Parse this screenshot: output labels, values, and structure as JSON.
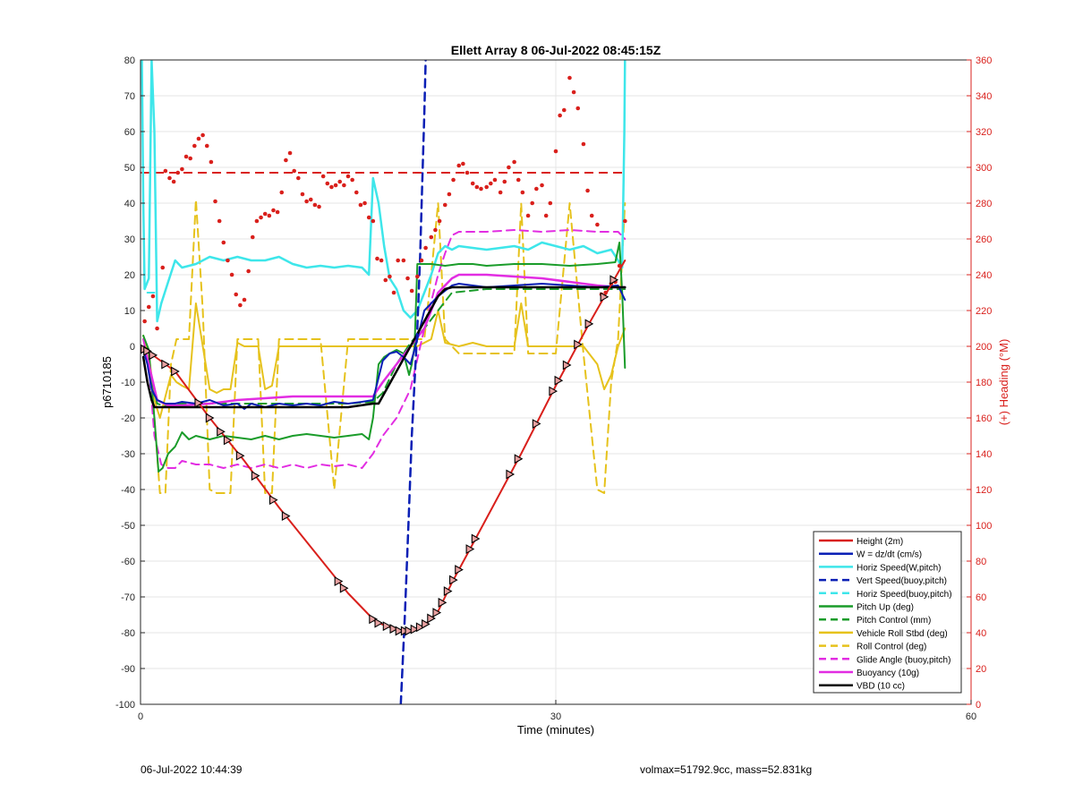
{
  "chart_data": {
    "type": "line",
    "title": "Ellett Array 8 06-Jul-2022 08:45:15Z",
    "xlabel": "Time (minutes)",
    "ylabel": "p6710185",
    "y2label": "(+) Heading (°M)",
    "xlim": [
      0,
      60
    ],
    "ylim": [
      -100,
      80
    ],
    "y2lim": [
      0,
      360
    ],
    "xticks": [
      0,
      30,
      60
    ],
    "yticks": [
      -100,
      -90,
      -80,
      -70,
      -60,
      -50,
      -40,
      -30,
      -20,
      -10,
      0,
      10,
      20,
      30,
      40,
      50,
      60,
      70,
      80
    ],
    "y2ticks": [
      0,
      20,
      40,
      60,
      80,
      100,
      120,
      140,
      160,
      180,
      200,
      220,
      240,
      260,
      280,
      300,
      320,
      340,
      360
    ],
    "grid": true,
    "legend_position": "bottom-right",
    "colors": {
      "red": "#d9201c",
      "blue": "#0a1fb5",
      "cyan": "#3ee6ea",
      "green": "#1a9c2a",
      "gold": "#e6c21c",
      "magenta": "#e22de2",
      "black": "#000000",
      "heading_axis": "#d9201c"
    },
    "legend": [
      {
        "label": "Height (2m)",
        "color": "#d9201c",
        "dash": false
      },
      {
        "label": "W = dz/dt (cm/s)",
        "color": "#0a1fb5",
        "dash": false
      },
      {
        "label": "Horiz Speed(W,pitch)",
        "color": "#3ee6ea",
        "dash": false
      },
      {
        "label": "Vert Speed(buoy,pitch)",
        "color": "#0a1fb5",
        "dash": true
      },
      {
        "label": "Horiz Speed(buoy,pitch)",
        "color": "#3ee6ea",
        "dash": true
      },
      {
        "label": "Pitch Up (deg)",
        "color": "#1a9c2a",
        "dash": false
      },
      {
        "label": "Pitch Control (mm)",
        "color": "#1a9c2a",
        "dash": true
      },
      {
        "label": "Vehicle Roll Stbd (deg)",
        "color": "#e6c21c",
        "dash": false
      },
      {
        "label": "Roll Control (deg)",
        "color": "#e6c21c",
        "dash": true
      },
      {
        "label": "Glide Angle (buoy,pitch)",
        "color": "#e22de2",
        "dash": true
      },
      {
        "label": "Buoyancy (10g)",
        "color": "#e22de2",
        "dash": false
      },
      {
        "label": "VBD (10 cc)",
        "color": "#000000",
        "dash": false
      }
    ],
    "series": [
      {
        "name": "Height (2m)",
        "color": "#d9201c",
        "dash": false,
        "width": 2,
        "x": [
          0.2,
          2.5,
          5,
          7.5,
          10,
          12.5,
          15,
          17,
          18.7,
          19.5,
          20.5,
          21.5,
          22.5,
          25,
          27.5,
          30,
          32.5,
          35
        ],
        "y": [
          -0.5,
          -7,
          -20,
          -32,
          -45,
          -57,
          -69,
          -77,
          -79.5,
          -79.5,
          -78,
          -74,
          -66,
          -48,
          -30,
          -11,
          7,
          24
        ]
      },
      {
        "name": "W = dz/dt (cm/s)",
        "color": "#0a1fb5",
        "dash": false,
        "width": 2,
        "x": [
          0.2,
          0.5,
          0.8,
          1.2,
          1.8,
          2.5,
          3,
          4,
          5,
          6,
          7,
          7.5,
          8,
          9,
          10,
          11,
          12,
          13,
          14,
          15,
          16,
          16.8,
          17.5,
          18,
          18.5,
          19,
          19.5,
          20,
          20.5,
          21.5,
          22.5,
          23,
          25,
          27,
          29,
          31,
          33,
          34.5,
          35
        ],
        "y": [
          -1,
          -5,
          -12,
          -15,
          -16,
          -16,
          -15.5,
          -16,
          -15,
          -16.5,
          -16,
          -17.5,
          -16,
          -17,
          -16,
          -16.5,
          -16,
          -16.5,
          -15.5,
          -16,
          -15.5,
          -15,
          -4,
          -2,
          -1.5,
          -3,
          -5,
          2,
          10,
          14,
          17,
          17.5,
          16.5,
          17,
          17.5,
          17,
          16.5,
          17,
          13
        ]
      },
      {
        "name": "Horiz Speed(W,pitch)",
        "color": "#3ee6ea",
        "dash": false,
        "width": 2.5,
        "x": [
          0.1,
          0.2,
          0.3,
          0.6,
          0.8,
          1.0,
          1.2,
          1.5,
          2,
          2.5,
          3,
          4,
          5,
          6,
          7,
          8,
          9,
          10,
          11,
          12,
          13,
          14,
          15,
          16,
          16.5,
          16.8,
          17.2,
          17.6,
          18,
          18.5,
          19,
          19.5,
          20,
          20.5,
          21,
          21.5,
          22,
          22.5,
          23,
          25,
          27,
          28,
          29,
          30,
          31,
          32,
          33,
          34,
          34.5,
          34.8,
          34.95,
          35
        ],
        "y": [
          80,
          40,
          16,
          19,
          80,
          60,
          7,
          12,
          18,
          24,
          22,
          23,
          25,
          24,
          25,
          24,
          24,
          25,
          23,
          22,
          22.5,
          22,
          22.5,
          22,
          20,
          47,
          40,
          28,
          19,
          16,
          10,
          8,
          10,
          15,
          20,
          26,
          28,
          27,
          28,
          27,
          28,
          27,
          29,
          28,
          27,
          28,
          26,
          27,
          24,
          22,
          60,
          80
        ]
      },
      {
        "name": "Vert Speed(buoy,pitch)",
        "color": "#0a1fb5",
        "dash": true,
        "width": 2.5,
        "x": [
          18.8,
          19.1,
          19.4,
          19.6,
          19.8,
          20.0,
          20.2,
          20.35,
          20.5,
          20.6
        ],
        "y": [
          -100,
          -75,
          -45,
          -25,
          -10,
          5,
          25,
          45,
          65,
          80
        ]
      },
      {
        "name": "Horiz Speed(buoy,pitch)",
        "color": "#3ee6ea",
        "dash": true,
        "width": 2,
        "x": [
          0.5,
          1
        ],
        "y": [
          15,
          15
        ]
      },
      {
        "name": "Pitch Up (deg)",
        "color": "#1a9c2a",
        "dash": false,
        "width": 2,
        "x": [
          0.2,
          0.6,
          1.0,
          1.3,
          1.6,
          2,
          2.5,
          3,
          3.5,
          4,
          5,
          6,
          7,
          8,
          9,
          10,
          11,
          12,
          13,
          14,
          15,
          16,
          16.5,
          16.8,
          17.2,
          17.6,
          18,
          18.5,
          19,
          19.4,
          19.6,
          19.8,
          20.0,
          20.3,
          21,
          22,
          23,
          24,
          25,
          27,
          29,
          31,
          33,
          34.3,
          34.6,
          34.8,
          35
        ],
        "y": [
          3,
          -1,
          -20,
          -35,
          -34,
          -30,
          -28,
          -24,
          -26,
          -25,
          -26,
          -25,
          -25.5,
          -26,
          -25,
          -26,
          -25,
          -24.5,
          -25,
          -25.5,
          -25,
          -24.5,
          -26,
          -20,
          -5,
          -3,
          -2,
          -1,
          -2,
          -8,
          -5,
          0,
          23,
          23,
          23,
          22.5,
          23,
          23,
          22.5,
          23,
          23,
          22.5,
          23,
          23.5,
          29,
          15,
          -6
        ]
      },
      {
        "name": "Pitch Control (mm)",
        "color": "#1a9c2a",
        "dash": true,
        "width": 2,
        "x": [
          0.2,
          0.6,
          1.2,
          2,
          3,
          5,
          7,
          9,
          11,
          13,
          15,
          16.8,
          17.5,
          18.5,
          19.5,
          20.5,
          21.5,
          22.5,
          25,
          28,
          31,
          34,
          35
        ],
        "y": [
          0,
          -5,
          -16,
          -17,
          -16,
          -16,
          -16,
          -16,
          -16,
          -16,
          -16,
          -15.5,
          -13,
          -5,
          1,
          5,
          10,
          15,
          16,
          16,
          16,
          16,
          16
        ]
      },
      {
        "name": "Vehicle Roll Stbd (deg)",
        "color": "#e6c21c",
        "dash": false,
        "width": 2,
        "x": [
          0.2,
          0.6,
          1.0,
          1.4,
          1.8,
          2.2,
          2.6,
          3,
          3.5,
          4,
          4.5,
          5,
          5.5,
          6,
          6.5,
          7,
          7.5,
          8,
          8.5,
          9,
          9.5,
          10,
          10.5,
          11,
          12,
          13,
          14,
          15,
          16,
          17,
          18,
          19,
          20,
          20.5,
          21,
          21.5,
          22,
          23,
          24,
          25,
          26,
          27,
          27.5,
          28,
          28.5,
          29,
          29.5,
          30,
          31,
          32,
          33,
          33.5,
          34,
          34.5,
          35
        ],
        "y": [
          3,
          -2,
          -15,
          -20,
          -14,
          -8,
          -10,
          -11,
          -12,
          12,
          0,
          -12,
          -13,
          -12,
          -12,
          1,
          0,
          0,
          0,
          -12,
          -11,
          0,
          0,
          0,
          0,
          0,
          0,
          0,
          0,
          0,
          0,
          0,
          0,
          1,
          2,
          10,
          1,
          0,
          1,
          0,
          0,
          0,
          12,
          0,
          0,
          0,
          0,
          0,
          0,
          0,
          -5,
          -12,
          -8,
          0,
          5
        ]
      },
      {
        "name": "Roll Control (deg)",
        "color": "#e6c21c",
        "dash": true,
        "width": 2,
        "x": [
          0.2,
          0.6,
          1.0,
          1.4,
          1.8,
          2.2,
          2.6,
          3,
          3.5,
          4,
          4.5,
          5,
          5.5,
          6,
          6.5,
          7,
          7.5,
          8,
          8.5,
          9,
          9.5,
          10,
          10.5,
          11,
          12,
          13,
          14,
          15,
          16,
          17,
          18,
          19,
          20,
          20.5,
          21,
          21.5,
          22,
          23,
          24,
          25,
          26,
          27,
          27.5,
          28,
          28.5,
          29,
          29.5,
          30,
          31,
          32,
          33,
          33.5,
          34,
          34.5,
          35
        ],
        "y": [
          2,
          -5,
          -20,
          -41,
          -41,
          -5,
          2,
          2,
          2,
          41,
          10,
          -40,
          -41,
          -41,
          -41,
          2,
          2,
          2,
          2,
          -41,
          -41,
          2,
          2,
          2,
          2,
          2,
          -40,
          2,
          2,
          2,
          2,
          2,
          2,
          2,
          20,
          40,
          2,
          -2,
          -2,
          -2,
          -2,
          -2,
          40,
          -2,
          -2,
          -2,
          -2,
          -2,
          40,
          -2,
          -40,
          -41,
          -10,
          2,
          40
        ]
      },
      {
        "name": "Glide Angle (buoy,pitch)",
        "color": "#e22de2",
        "dash": true,
        "width": 2,
        "x": [
          0.2,
          0.6,
          1.0,
          1.5,
          2,
          2.5,
          3,
          4,
          5,
          6,
          7,
          8,
          9,
          10,
          11,
          12,
          13,
          14,
          15,
          16,
          16.8,
          17.5,
          18.5,
          19.5,
          20.5,
          21.5,
          22,
          22.5,
          23,
          25,
          27,
          29,
          31,
          33,
          34.5,
          35
        ],
        "y": [
          2,
          -5,
          -25,
          -33,
          -34,
          -34,
          -32,
          -33,
          -33,
          -34,
          -33,
          -34,
          -33,
          -34,
          -33,
          -34,
          -33,
          -33.5,
          -33,
          -34,
          -30,
          -25,
          -20,
          -12,
          5,
          20,
          26,
          31,
          32,
          32,
          32.5,
          32,
          32.5,
          32,
          32,
          30
        ]
      },
      {
        "name": "Buoyancy (10g)",
        "color": "#e22de2",
        "dash": false,
        "width": 2.5,
        "x": [
          0.2,
          0.6,
          1.2,
          2,
          3,
          5,
          7,
          9,
          11,
          13,
          15,
          16.8,
          17.5,
          18.5,
          19.5,
          20.5,
          21.5,
          22.5,
          23,
          25,
          27,
          29,
          31,
          33,
          34.5,
          35
        ],
        "y": [
          0,
          -5,
          -15,
          -16.5,
          -16.5,
          -16,
          -15,
          -14.5,
          -14,
          -14,
          -14,
          -14,
          -10,
          -5,
          0,
          5,
          15,
          19,
          20,
          20,
          19.5,
          19,
          18,
          17,
          16.5,
          16.5
        ]
      },
      {
        "name": "VBD (10 cc)",
        "color": "#000000",
        "dash": false,
        "width": 2.5,
        "x": [
          0.2,
          0.5,
          0.8,
          1.0,
          1.2,
          2,
          5,
          10,
          15,
          16.8,
          17.2,
          19.5,
          20.5,
          21.5,
          22,
          22.5,
          23,
          25,
          30,
          35
        ],
        "y": [
          -3,
          -10,
          -15,
          -17,
          -17,
          -17,
          -17,
          -17,
          -17,
          -16,
          -16,
          0,
          7,
          14,
          16,
          16.5,
          16.5,
          16.5,
          16.5,
          16.5
        ]
      }
    ],
    "heading_reference": {
      "name": "heading reference",
      "color": "#d9201c",
      "dash": true,
      "x": [
        0,
        35
      ],
      "y2": [
        297,
        297
      ]
    },
    "heading_points": {
      "color": "#d9201c",
      "x": [
        0.3,
        0.6,
        0.9,
        1.2,
        1.6,
        1.8,
        2.1,
        2.4,
        2.7,
        3.0,
        3.3,
        3.6,
        3.9,
        4.2,
        4.5,
        4.8,
        5.1,
        5.4,
        5.7,
        6.0,
        6.3,
        6.6,
        6.9,
        7.2,
        7.5,
        7.8,
        8.1,
        8.4,
        8.7,
        9.0,
        9.3,
        9.6,
        9.9,
        10.2,
        10.5,
        10.8,
        11.1,
        11.4,
        11.7,
        12.0,
        12.3,
        12.6,
        12.9,
        13.2,
        13.5,
        13.8,
        14.1,
        14.4,
        14.7,
        15.0,
        15.3,
        15.6,
        15.9,
        16.2,
        16.5,
        16.8,
        17.1,
        17.4,
        17.7,
        18.0,
        18.3,
        18.6,
        19.0,
        19.3,
        19.6,
        20.0,
        20.3,
        20.6,
        21.0,
        21.3,
        21.6,
        22.0,
        22.3,
        22.6,
        23.0,
        23.3,
        23.6,
        24.0,
        24.3,
        24.6,
        25.0,
        25.3,
        25.6,
        26.0,
        26.3,
        26.6,
        27.0,
        27.3,
        27.6,
        28.0,
        28.3,
        28.6,
        29.0,
        29.3,
        29.6,
        30.0,
        30.3,
        30.6,
        31.0,
        31.3,
        31.6,
        32.0,
        32.3,
        32.6,
        33.0,
        33.3,
        33.6,
        34.0,
        34.3,
        34.6,
        35.0
      ],
      "y2": [
        214,
        222,
        228,
        210,
        244,
        298,
        294,
        292,
        297,
        299,
        306,
        305,
        312,
        316,
        318,
        312,
        303,
        281,
        270,
        258,
        248,
        240,
        229,
        223,
        226,
        242,
        261,
        270,
        272,
        274,
        273,
        276,
        275,
        286,
        304,
        308,
        298,
        294,
        285,
        281,
        282,
        279,
        278,
        295,
        291,
        289,
        290,
        292,
        290,
        295,
        293,
        286,
        279,
        280,
        272,
        270,
        249,
        248,
        237,
        239,
        230,
        248,
        248,
        238,
        231,
        239,
        248,
        255,
        261,
        265,
        270,
        279,
        285,
        293,
        301,
        302,
        297,
        291,
        289,
        288,
        289,
        291,
        293,
        286,
        292,
        300,
        303,
        293,
        286,
        273,
        280,
        288,
        290,
        273,
        280,
        309,
        329,
        332,
        350,
        342,
        333,
        313,
        287,
        273,
        268,
        229,
        230,
        235,
        236,
        245,
        270
      ]
    },
    "marker_x": [
      0.3,
      0.5,
      0.9,
      1.8,
      2.5,
      4.2,
      5.0,
      5.8,
      6.3,
      7.2,
      8.3,
      9.6,
      10.5,
      14.3,
      14.7,
      16.8,
      17.2,
      17.8,
      18.3,
      18.7,
      19.1,
      19.4,
      19.8,
      20.2,
      20.6,
      21.0,
      21.4,
      21.8,
      22.2,
      22.6,
      23.0,
      23.8,
      24.2,
      26.7,
      27.3,
      28.6,
      29.8,
      30.2,
      30.8,
      31.6,
      32.4,
      33.5,
      34.2
    ]
  },
  "footer": {
    "left": "06-Jul-2022 10:44:39",
    "right": "volmax=51792.9cc, mass=52.831kg"
  }
}
